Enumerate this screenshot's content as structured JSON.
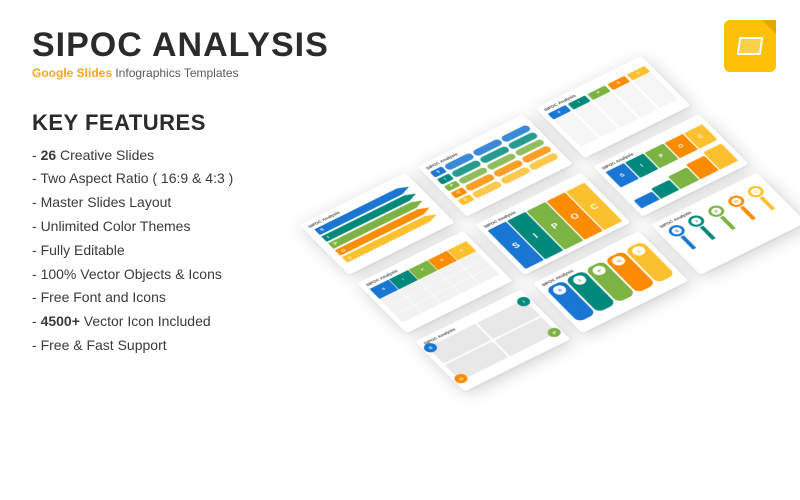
{
  "header": {
    "title": "SIPOC ANALYSIS",
    "subtitle_accent": "Google Slides",
    "subtitle_rest": " Infographics Templates"
  },
  "features": {
    "heading": "KEY FEATURES",
    "items": [
      {
        "bold": "26",
        "rest": " Creative Slides"
      },
      {
        "bold": "",
        "rest": "Two Aspect Ratio ( 16:9 & 4:3 )"
      },
      {
        "bold": "",
        "rest": "Master Slides Layout"
      },
      {
        "bold": "",
        "rest": "Unlimited Color Themes"
      },
      {
        "bold": "",
        "rest": "Fully Editable"
      },
      {
        "bold": "",
        "rest": "100% Vector Objects & Icons"
      },
      {
        "bold": "",
        "rest": "Free Font and Icons"
      },
      {
        "bold": "4500+",
        "rest": " Vector Icon Included"
      },
      {
        "bold": "",
        "rest": "Free & Fast Support"
      }
    ]
  },
  "palette": {
    "s": "#1976d2",
    "i": "#00897b",
    "p": "#7cb342",
    "o": "#fb8c00",
    "c": "#fbc02d",
    "accent": "#f5a623",
    "grey": "#e8e8e8"
  },
  "sipoc_letters": [
    "S",
    "I",
    "P",
    "O",
    "C"
  ],
  "slide_title": "SIPOC Analysis",
  "slides": [
    {
      "pos": "pos-0-0",
      "layout": "chevrons"
    },
    {
      "pos": "pos-0-1",
      "layout": "bars"
    },
    {
      "pos": "pos-0-2",
      "layout": "textcols"
    },
    {
      "pos": "pos-1-0",
      "layout": "grid"
    },
    {
      "pos": "pos-1-1",
      "layout": "big"
    },
    {
      "pos": "pos-1-2",
      "layout": "step"
    },
    {
      "pos": "pos-2-0",
      "layout": "twobytwo"
    },
    {
      "pos": "pos-2-1",
      "layout": "vpills"
    },
    {
      "pos": "pos-2-2",
      "layout": "circles"
    }
  ]
}
